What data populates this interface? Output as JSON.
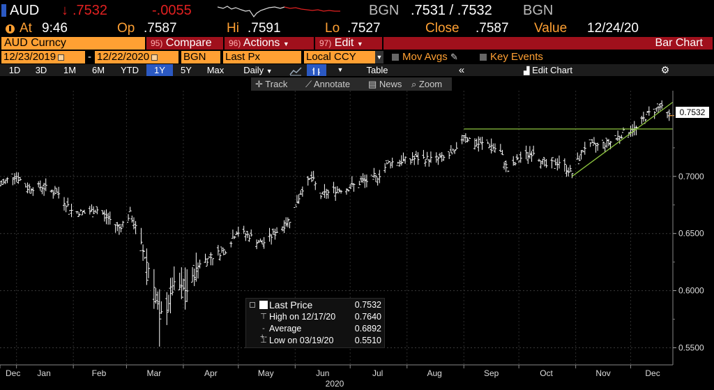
{
  "header": {
    "ticker": "AUD",
    "last_arrow": "↓",
    "last": ".7532",
    "change": "-.0055",
    "source_left": "BGN",
    "bid_ask": ".7531 / .7532",
    "source_right": "BGN"
  },
  "quote": {
    "at_label": "At",
    "time": "9:46",
    "op_label": "Op",
    "op": ".7587",
    "hi_label": "Hi",
    "hi": ".7591",
    "lo_label": "Lo",
    "lo": ".7527",
    "close_label": "Close",
    "close": ".7587",
    "value_label": "Value",
    "value_date": "12/24/20"
  },
  "toolbar": {
    "security": "AUD Curncy",
    "compare": {
      "num": "95)",
      "label": "Compare"
    },
    "actions": {
      "num": "96)",
      "label": "Actions"
    },
    "edit": {
      "num": "97)",
      "label": "Edit"
    },
    "chart_type": "Bar Chart"
  },
  "settings": {
    "start_date": "12/23/2019",
    "end_date": "12/22/2020",
    "source": "BGN",
    "field": "Last Px",
    "currency": "Local CCY",
    "mov_avgs": "Mov Avgs",
    "key_events": "Key Events"
  },
  "periods": {
    "items": [
      "1D",
      "3D",
      "1M",
      "6M",
      "YTD",
      "1Y",
      "5Y",
      "Max"
    ],
    "active": "1Y",
    "frequency": "Daily",
    "table": "Table",
    "collapse": "«",
    "edit_chart": "Edit Chart"
  },
  "tools": {
    "track": "Track",
    "annotate": "Annotate",
    "news": "News",
    "zoom": "Zoom"
  },
  "legend": {
    "last_price": {
      "label": "Last Price",
      "value": "0.7532"
    },
    "high": {
      "label": "High on 12/17/20",
      "value": "0.7640"
    },
    "average": {
      "label": "Average",
      "value": "0.6892"
    },
    "low": {
      "label": "Low on 03/19/20",
      "value": "0.5510"
    }
  },
  "chart_data": {
    "type": "bar",
    "series": [
      {
        "name": "Last Price"
      }
    ],
    "price_tag": "0.7532",
    "y_ticks": [
      "0.7000",
      "0.6500",
      "0.6000",
      "0.5500"
    ],
    "y_tick_values": [
      0.7,
      0.65,
      0.6,
      0.55
    ],
    "ylim": [
      0.535,
      0.775
    ],
    "x_months": [
      "Dec",
      "Jan",
      "Feb",
      "Mar",
      "Apr",
      "May",
      "Jun",
      "Jul",
      "Aug",
      "Sep",
      "Oct",
      "Nov",
      "Dec"
    ],
    "year_label": "2020",
    "xlim": [
      "2019-12-23",
      "2020-12-24"
    ],
    "grid": true,
    "price_points": [
      [
        "2019-12-23",
        0.692
      ],
      [
        "2019-12-31",
        0.702
      ],
      [
        "2020-01-07",
        0.69
      ],
      [
        "2020-01-15",
        0.691
      ],
      [
        "2020-01-24",
        0.685
      ],
      [
        "2020-01-31",
        0.67
      ],
      [
        "2020-02-07",
        0.668
      ],
      [
        "2020-02-14",
        0.671
      ],
      [
        "2020-02-21",
        0.662
      ],
      [
        "2020-02-26",
        0.655
      ],
      [
        "2020-03-03",
        0.667
      ],
      [
        "2020-03-06",
        0.655
      ],
      [
        "2020-03-10",
        0.635
      ],
      [
        "2020-03-12",
        0.625
      ],
      [
        "2020-03-16",
        0.605
      ],
      [
        "2020-03-19",
        0.578
      ],
      [
        "2020-03-23",
        0.585
      ],
      [
        "2020-03-27",
        0.605
      ],
      [
        "2020-04-03",
        0.6
      ],
      [
        "2020-04-10",
        0.625
      ],
      [
        "2020-04-17",
        0.63
      ],
      [
        "2020-04-24",
        0.636
      ],
      [
        "2020-04-30",
        0.652
      ],
      [
        "2020-05-07",
        0.648
      ],
      [
        "2020-05-14",
        0.641
      ],
      [
        "2020-05-22",
        0.652
      ],
      [
        "2020-05-29",
        0.662
      ],
      [
        "2020-06-05",
        0.69
      ],
      [
        "2020-06-10",
        0.699
      ],
      [
        "2020-06-15",
        0.683
      ],
      [
        "2020-06-22",
        0.688
      ],
      [
        "2020-06-30",
        0.69
      ],
      [
        "2020-07-07",
        0.695
      ],
      [
        "2020-07-15",
        0.698
      ],
      [
        "2020-07-22",
        0.712
      ],
      [
        "2020-07-31",
        0.714
      ],
      [
        "2020-08-07",
        0.716
      ],
      [
        "2020-08-14",
        0.715
      ],
      [
        "2020-08-21",
        0.716
      ],
      [
        "2020-08-28",
        0.722
      ],
      [
        "2020-09-01",
        0.737
      ],
      [
        "2020-09-07",
        0.728
      ],
      [
        "2020-09-14",
        0.729
      ],
      [
        "2020-09-21",
        0.721
      ],
      [
        "2020-09-25",
        0.705
      ],
      [
        "2020-10-02",
        0.716
      ],
      [
        "2020-10-09",
        0.722
      ],
      [
        "2020-10-16",
        0.709
      ],
      [
        "2020-10-23",
        0.713
      ],
      [
        "2020-10-30",
        0.703
      ],
      [
        "2020-11-06",
        0.726
      ],
      [
        "2020-11-13",
        0.727
      ],
      [
        "2020-11-20",
        0.73
      ],
      [
        "2020-11-27",
        0.738
      ],
      [
        "2020-12-04",
        0.742
      ],
      [
        "2020-12-10",
        0.754
      ],
      [
        "2020-12-17",
        0.761
      ],
      [
        "2020-12-22",
        0.753
      ]
    ],
    "low": {
      "date": "2020-03-19",
      "value": 0.551
    },
    "high": {
      "date": "2020-12-17",
      "value": 0.764
    },
    "resistance_line": {
      "from": [
        "2020-09-01",
        0.7415
      ],
      "to": [
        "2020-12-24",
        0.7415
      ]
    },
    "support_line": {
      "from": [
        "2020-10-30",
        0.7
      ],
      "to": [
        "2020-12-24",
        0.765
      ]
    }
  },
  "colors": {
    "orange": "#ffa033",
    "red_button": "#a0101c",
    "active_blue": "#2b59c3",
    "trendline": "#8ec63f",
    "down_red": "#e02020"
  }
}
